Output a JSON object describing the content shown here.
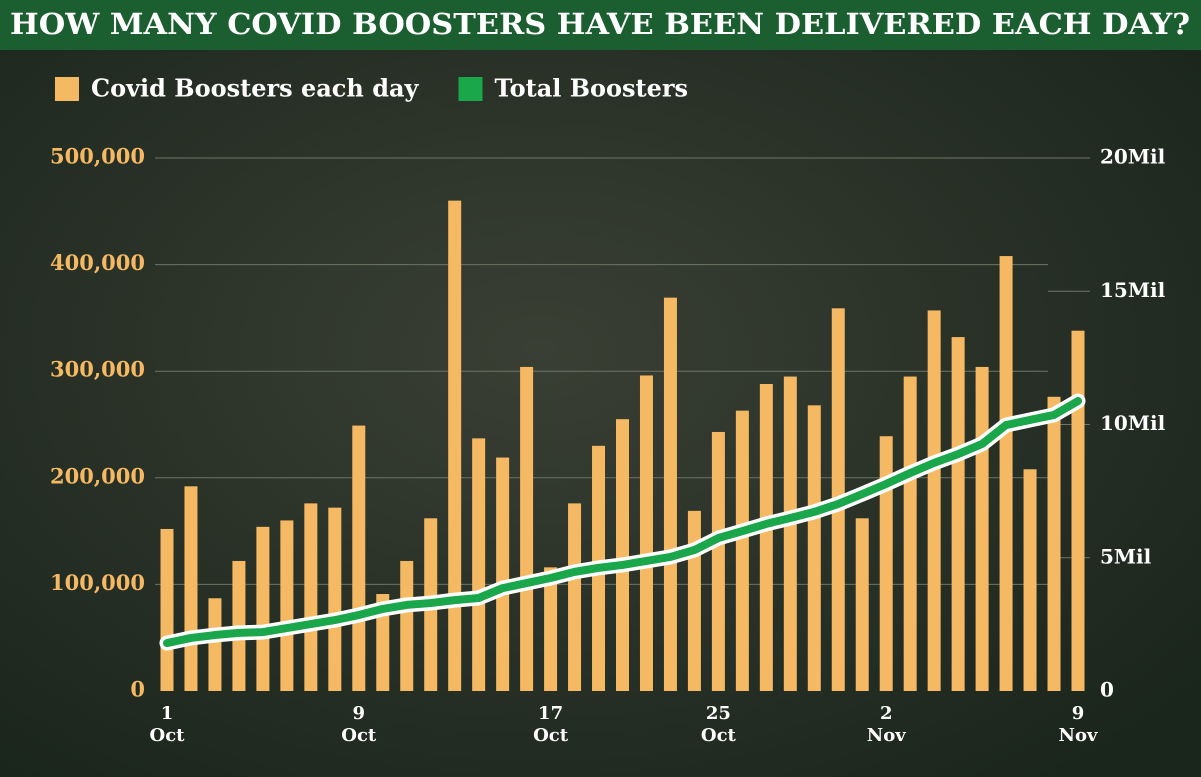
{
  "chart_data": {
    "type": "bar_line",
    "title": "HOW MANY COVID BOOSTERS HAVE BEEN DELIVERED EACH DAY?",
    "categories": [
      "1 Oct",
      null,
      null,
      null,
      null,
      null,
      null,
      null,
      "9 Oct",
      null,
      null,
      null,
      null,
      null,
      null,
      null,
      "17 Oct",
      null,
      null,
      null,
      null,
      null,
      null,
      "25 Oct",
      null,
      null,
      null,
      null,
      null,
      null,
      "2 Nov",
      null,
      null,
      null,
      null,
      null,
      null,
      null,
      "9 Nov"
    ],
    "series": [
      {
        "name": "Covid Boosters each day",
        "color": "#f5b963",
        "type": "bar",
        "values": [
          152000,
          192000,
          87000,
          122000,
          154000,
          160000,
          176000,
          172000,
          249000,
          91000,
          122000,
          162000,
          460000,
          237000,
          219000,
          304000,
          116000,
          176000,
          230000,
          255000,
          296000,
          369000,
          169000,
          243000,
          263000,
          288000,
          295000,
          268000,
          359000,
          162000,
          239000,
          295000,
          357000,
          332000,
          304000,
          408000,
          208000,
          276000,
          338000
        ]
      },
      {
        "name": "Total Boosters",
        "color": "#1aa64a",
        "type": "line",
        "axis": "y2",
        "values": [
          1.8,
          1.99,
          2.1,
          2.18,
          2.21,
          2.36,
          2.51,
          2.66,
          2.85,
          3.08,
          3.23,
          3.3,
          3.41,
          3.49,
          3.86,
          4.05,
          4.24,
          4.47,
          4.62,
          4.73,
          4.88,
          5.03,
          5.29,
          5.74,
          6.0,
          6.27,
          6.49,
          6.72,
          7.02,
          7.39,
          7.77,
          8.18,
          8.56,
          8.89,
          9.27,
          9.98,
          10.17,
          10.36,
          10.88
        ]
      }
    ],
    "ylim": [
      0,
      500000
    ],
    "yticks": [
      0,
      {
        "value": 100000,
        "label": "100,000"
      },
      {
        "value": 200000,
        "label": "200,000"
      },
      {
        "value": 300000,
        "label": "300,000"
      },
      {
        "value": 400000,
        "label": "400,000"
      },
      {
        "value": 500000,
        "label": "500,000"
      }
    ],
    "y2lim": [
      0,
      20
    ],
    "y2ticks": [
      0,
      {
        "value": 5,
        "label": "5Mil"
      },
      {
        "value": 10,
        "label": "10Mil"
      },
      {
        "value": 15,
        "label": "15Mil"
      },
      {
        "value": 20,
        "label": "20Mil"
      }
    ],
    "grid": true
  }
}
